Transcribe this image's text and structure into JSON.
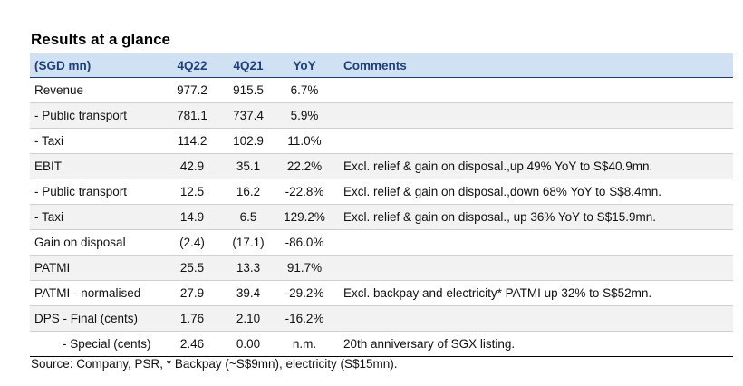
{
  "title": "Results at a glance",
  "headers": {
    "label": "(SGD mn)",
    "q1": "4Q22",
    "q2": "4Q21",
    "yoy": "YoY",
    "comments": "Comments"
  },
  "rows": [
    {
      "label": "Revenue",
      "q1": "977.2",
      "q2": "915.5",
      "yoy": "6.7%",
      "comment": ""
    },
    {
      "label": " - Public transport",
      "q1": "781.1",
      "q2": "737.4",
      "yoy": "5.9%",
      "comment": ""
    },
    {
      "label": " - Taxi",
      "q1": "114.2",
      "q2": "102.9",
      "yoy": "11.0%",
      "comment": ""
    },
    {
      "label": "EBIT",
      "q1": "42.9",
      "q2": "35.1",
      "yoy": "22.2%",
      "comment": "Excl. relief & gain on disposal.,up 49% YoY to S$40.9mn."
    },
    {
      "label": " - Public transport",
      "q1": "12.5",
      "q2": "16.2",
      "yoy": "-22.8%",
      "comment": "Excl. relief & gain on disposal.,down 68% YoY to S$8.4mn."
    },
    {
      "label": " - Taxi",
      "q1": "14.9",
      "q2": "6.5",
      "yoy": "129.2%",
      "comment": "Excl. relief & gain on disposal., up 36% YoY to S$15.9mn."
    },
    {
      "label": "Gain on disposal",
      "q1": "(2.4)",
      "q2": "(17.1)",
      "yoy": "-86.0%",
      "comment": ""
    },
    {
      "label": "PATMI",
      "q1": "25.5",
      "q2": "13.3",
      "yoy": "91.7%",
      "comment": ""
    },
    {
      "label": "PATMI - normalised",
      "q1": "27.9",
      "q2": "39.4",
      "yoy": "-29.2%",
      "comment": "Excl. backpay and electricity* PATMI up 32% to S$52mn."
    },
    {
      "label": "DPS - Final (cents)",
      "q1": "1.76",
      "q2": "2.10",
      "yoy": "-16.2%",
      "comment": ""
    },
    {
      "label": "- Special (cents)",
      "q1": "2.46",
      "q2": "0.00",
      "yoy": "n.m.",
      "comment": "20th anniversary of SGX listing."
    }
  ],
  "source": "Source: Company, PSR, * Backpay (~S$9mn), electricity (S$15mn)."
}
